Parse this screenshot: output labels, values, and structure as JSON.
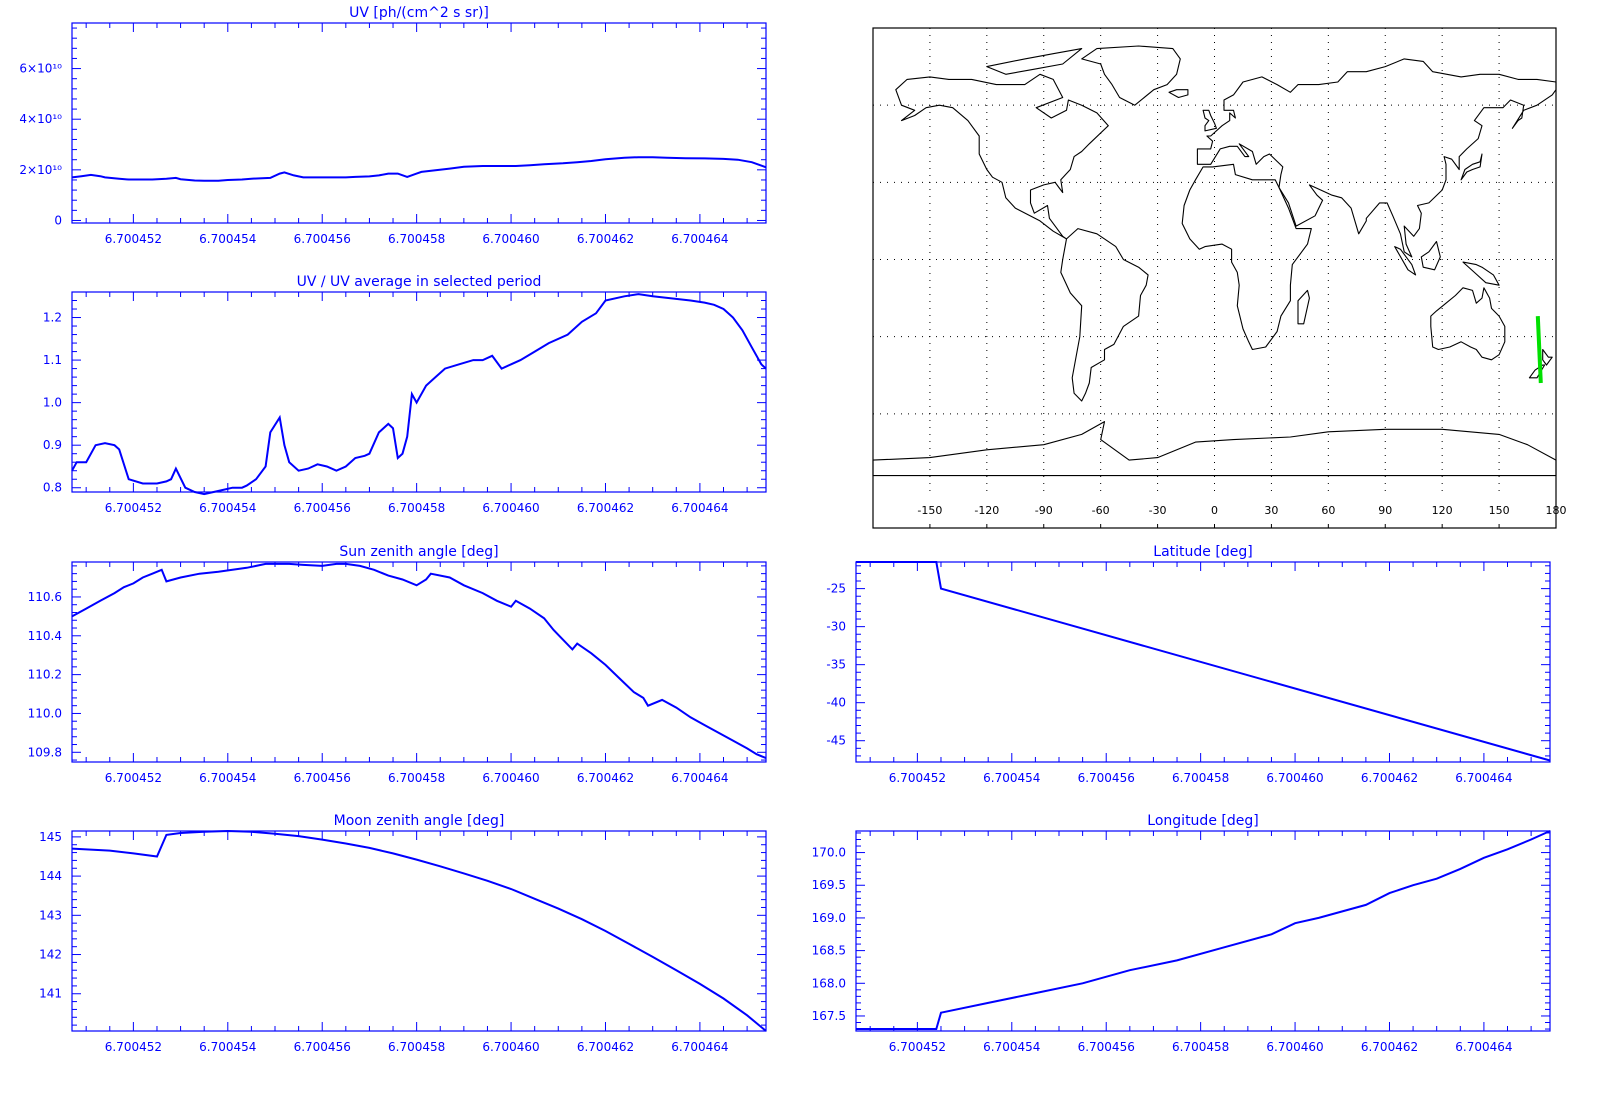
{
  "colors": {
    "axis": "#0000ff",
    "line": "#0000ff",
    "map": "#000000",
    "track": "#00e000",
    "grid": "#000000"
  },
  "x_tick_labels": [
    "6.700452",
    "6.700454",
    "6.700456",
    "6.700458",
    "6.700460",
    "6.700462",
    "6.700464"
  ],
  "chart_data": [
    {
      "id": "uv",
      "type": "line",
      "title": "UV [ph/(cm^2 s sr)]",
      "xlim": [
        6.7004507,
        6.7004654
      ],
      "ylim": [
        -1000000000.0,
        78000000000.0
      ],
      "x_ticks": [
        6.700452,
        6.700454,
        6.700456,
        6.700458,
        6.70046,
        6.700462,
        6.700464
      ],
      "y_ticks": [
        0,
        20000000000.0,
        40000000000.0,
        60000000000.0
      ],
      "y_tick_labels": [
        "0",
        "2×10¹⁰",
        "4×10¹⁰",
        "6×10¹⁰"
      ],
      "x": [
        6.7004507,
        6.7004509,
        6.7004511,
        6.7004513,
        6.7004514,
        6.7004517,
        6.7004519,
        6.7004522,
        6.7004524,
        6.7004527,
        6.7004529,
        6.700453,
        6.7004533,
        6.7004535,
        6.7004538,
        6.700454,
        6.7004543,
        6.7004545,
        6.7004549,
        6.7004551,
        6.7004552,
        6.7004554,
        6.7004556,
        6.7004559,
        6.7004562,
        6.7004565,
        6.7004567,
        6.700457,
        6.7004572,
        6.7004574,
        6.7004576,
        6.7004578,
        6.700458,
        6.7004581,
        6.7004584,
        6.7004587,
        6.700459,
        6.7004594,
        6.7004598,
        6.7004601,
        6.7004604,
        6.7004607,
        6.7004611,
        6.7004614,
        6.7004617,
        6.700462,
        6.7004624,
        6.7004627,
        6.700463,
        6.7004633,
        6.7004637,
        6.7004641,
        6.7004645,
        6.7004648,
        6.7004651,
        6.7004654
      ],
      "y": [
        17000000000.0,
        17500000000.0,
        18000000000.0,
        17500000000.0,
        17000000000.0,
        16500000000.0,
        16200000000.0,
        16200000000.0,
        16200000000.0,
        16500000000.0,
        16800000000.0,
        16300000000.0,
        15800000000.0,
        15700000000.0,
        15700000000.0,
        16000000000.0,
        16200000000.0,
        16500000000.0,
        16800000000.0,
        18500000000.0,
        19000000000.0,
        17800000000.0,
        17000000000.0,
        17000000000.0,
        17000000000.0,
        17000000000.0,
        17200000000.0,
        17400000000.0,
        17800000000.0,
        18500000000.0,
        18500000000.0,
        17200000000.0,
        18500000000.0,
        19200000000.0,
        19800000000.0,
        20500000000.0,
        21200000000.0,
        21500000000.0,
        21500000000.0,
        21500000000.0,
        21800000000.0,
        22200000000.0,
        22600000000.0,
        23000000000.0,
        23500000000.0,
        24200000000.0,
        24800000000.0,
        25000000000.0,
        25000000000.0,
        24800000000.0,
        24600000000.0,
        24500000000.0,
        24300000000.0,
        24000000000.0,
        23000000000.0,
        21000000000.0
      ]
    },
    {
      "id": "ratio",
      "type": "line",
      "title": "UV / UV average in selected period",
      "xlim": [
        6.7004507,
        6.7004654
      ],
      "ylim": [
        0.79,
        1.26
      ],
      "x_ticks": [
        6.700452,
        6.700454,
        6.700456,
        6.700458,
        6.70046,
        6.700462,
        6.700464
      ],
      "y_ticks": [
        0.8,
        0.9,
        1.0,
        1.1,
        1.2
      ],
      "y_tick_labels": [
        "0.8",
        "0.9",
        "1.0",
        "1.1",
        "1.2"
      ],
      "x": [
        6.7004507,
        6.7004508,
        6.700451,
        6.7004512,
        6.7004514,
        6.7004516,
        6.7004517,
        6.7004519,
        6.7004522,
        6.7004525,
        6.7004527,
        6.7004528,
        6.7004529,
        6.7004531,
        6.7004533,
        6.7004535,
        6.7004537,
        6.7004539,
        6.7004541,
        6.7004543,
        6.7004544,
        6.7004546,
        6.7004548,
        6.7004549,
        6.7004551,
        6.7004552,
        6.7004553,
        6.7004555,
        6.7004557,
        6.7004559,
        6.7004561,
        6.7004563,
        6.7004565,
        6.7004567,
        6.7004569,
        6.700457,
        6.7004572,
        6.7004574,
        6.7004575,
        6.7004576,
        6.7004577,
        6.7004578,
        6.7004579,
        6.700458,
        6.7004582,
        6.7004584,
        6.7004586,
        6.7004589,
        6.7004592,
        6.7004594,
        6.7004596,
        6.7004598,
        6.70046,
        6.7004602,
        6.7004605,
        6.7004608,
        6.7004612,
        6.7004615,
        6.7004618,
        6.700462,
        6.7004624,
        6.7004627,
        6.700463,
        6.7004634,
        6.7004638,
        6.7004641,
        6.7004643,
        6.7004645,
        6.7004647,
        6.7004649,
        6.7004651,
        6.7004653,
        6.7004654
      ],
      "y": [
        0.84,
        0.86,
        0.86,
        0.9,
        0.905,
        0.9,
        0.89,
        0.82,
        0.81,
        0.81,
        0.815,
        0.82,
        0.845,
        0.8,
        0.79,
        0.785,
        0.79,
        0.795,
        0.8,
        0.8,
        0.805,
        0.82,
        0.85,
        0.93,
        0.965,
        0.9,
        0.86,
        0.84,
        0.845,
        0.855,
        0.85,
        0.84,
        0.85,
        0.87,
        0.875,
        0.88,
        0.93,
        0.95,
        0.94,
        0.87,
        0.88,
        0.92,
        1.02,
        1.0,
        1.04,
        1.06,
        1.08,
        1.09,
        1.1,
        1.1,
        1.11,
        1.08,
        1.09,
        1.1,
        1.12,
        1.14,
        1.16,
        1.19,
        1.21,
        1.24,
        1.25,
        1.255,
        1.25,
        1.245,
        1.24,
        1.235,
        1.23,
        1.22,
        1.2,
        1.17,
        1.13,
        1.09,
        1.08
      ]
    },
    {
      "id": "sun",
      "type": "line",
      "title": "Sun zenith angle [deg]",
      "xlim": [
        6.7004507,
        6.7004654
      ],
      "ylim": [
        109.75,
        110.78
      ],
      "x_ticks": [
        6.700452,
        6.700454,
        6.700456,
        6.700458,
        6.70046,
        6.700462,
        6.700464
      ],
      "y_ticks": [
        109.8,
        110.0,
        110.2,
        110.4,
        110.6
      ],
      "y_tick_labels": [
        "109.8",
        "110.0",
        "110.2",
        "110.4",
        "110.6"
      ],
      "x": [
        6.7004507,
        6.700451,
        6.7004513,
        6.7004516,
        6.7004518,
        6.700452,
        6.7004522,
        6.7004524,
        6.7004526,
        6.7004527,
        6.700453,
        6.7004534,
        6.7004538,
        6.7004541,
        6.7004544,
        6.7004548,
        6.7004551,
        6.7004553,
        6.7004556,
        6.700456,
        6.7004563,
        6.7004565,
        6.7004568,
        6.7004571,
        6.7004574,
        6.7004577,
        6.700458,
        6.7004582,
        6.7004583,
        6.7004587,
        6.700459,
        6.7004594,
        6.7004597,
        6.70046,
        6.7004601,
        6.7004604,
        6.7004607,
        6.7004609,
        6.7004611,
        6.7004613,
        6.7004614,
        6.7004617,
        6.700462,
        6.7004623,
        6.7004626,
        6.7004628,
        6.7004629,
        6.7004632,
        6.7004635,
        6.7004638,
        6.7004641,
        6.7004644,
        6.7004647,
        6.700465,
        6.7004652,
        6.7004654
      ],
      "y": [
        110.5,
        110.54,
        110.58,
        110.62,
        110.65,
        110.67,
        110.7,
        110.72,
        110.74,
        110.68,
        110.7,
        110.72,
        110.73,
        110.74,
        110.75,
        110.77,
        110.77,
        110.77,
        110.765,
        110.76,
        110.77,
        110.77,
        110.76,
        110.74,
        110.71,
        110.69,
        110.66,
        110.69,
        110.72,
        110.7,
        110.66,
        110.62,
        110.58,
        110.55,
        110.58,
        110.54,
        110.49,
        110.43,
        110.38,
        110.33,
        110.36,
        110.31,
        110.25,
        110.18,
        110.11,
        110.08,
        110.04,
        110.07,
        110.03,
        109.98,
        109.94,
        109.9,
        109.86,
        109.82,
        109.79,
        109.77
      ]
    },
    {
      "id": "moon",
      "type": "line",
      "title": "Moon zenith angle [deg]",
      "xlim": [
        6.7004507,
        6.7004654
      ],
      "ylim": [
        140.05,
        145.15
      ],
      "x_ticks": [
        6.700452,
        6.700454,
        6.700456,
        6.700458,
        6.70046,
        6.700462,
        6.700464
      ],
      "y_ticks": [
        141,
        142,
        143,
        144,
        145
      ],
      "y_tick_labels": [
        "141",
        "142",
        "143",
        "144",
        "145"
      ],
      "x": [
        6.7004507,
        6.7004515,
        6.700452,
        6.7004525,
        6.7004527,
        6.700453,
        6.7004535,
        6.700454,
        6.7004545,
        6.700455,
        6.7004555,
        6.700456,
        6.7004565,
        6.700457,
        6.7004575,
        6.700458,
        6.7004585,
        6.700459,
        6.7004595,
        6.70046,
        6.7004605,
        6.700461,
        6.7004615,
        6.700462,
        6.7004625,
        6.700463,
        6.7004635,
        6.700464,
        6.7004645,
        6.700465,
        6.7004654
      ],
      "y": [
        144.7,
        144.65,
        144.58,
        144.5,
        145.05,
        145.1,
        145.13,
        145.15,
        145.13,
        145.08,
        145.02,
        144.93,
        144.83,
        144.72,
        144.58,
        144.42,
        144.25,
        144.07,
        143.88,
        143.67,
        143.42,
        143.17,
        142.9,
        142.6,
        142.27,
        141.94,
        141.6,
        141.25,
        140.88,
        140.45,
        140.05
      ]
    },
    {
      "id": "lat",
      "type": "line",
      "title": "Latitude [deg]",
      "xlim": [
        6.7004507,
        6.7004654
      ],
      "ylim": [
        -47.8,
        -21.5
      ],
      "x_ticks": [
        6.700452,
        6.700454,
        6.700456,
        6.700458,
        6.70046,
        6.700462,
        6.700464
      ],
      "y_ticks": [
        -45,
        -40,
        -35,
        -30,
        -25
      ],
      "y_tick_labels": [
        "-45",
        "-40",
        "-35",
        "-30",
        "-25"
      ],
      "x": [
        6.7004507,
        6.7004524,
        6.7004525,
        6.7004654
      ],
      "y": [
        -21.5,
        -21.5,
        -25.0,
        -47.6
      ]
    },
    {
      "id": "lon",
      "type": "line",
      "title": "Longitude [deg]",
      "xlim": [
        6.7004507,
        6.7004654
      ],
      "ylim": [
        167.27,
        170.33
      ],
      "x_ticks": [
        6.700452,
        6.700454,
        6.700456,
        6.700458,
        6.70046,
        6.700462,
        6.700464
      ],
      "y_ticks": [
        167.5,
        168.0,
        168.5,
        169.0,
        169.5,
        170.0
      ],
      "y_tick_labels": [
        "167.5",
        "168.0",
        "168.5",
        "169.0",
        "169.5",
        "170.0"
      ],
      "x": [
        6.7004507,
        6.7004524,
        6.7004525,
        6.7004535,
        6.7004545,
        6.7004555,
        6.7004565,
        6.7004575,
        6.7004585,
        6.7004595,
        6.70046,
        6.7004605,
        6.7004615,
        6.700462,
        6.7004625,
        6.700463,
        6.7004635,
        6.700464,
        6.7004645,
        6.700465,
        6.7004654
      ],
      "y": [
        167.3,
        167.3,
        167.55,
        167.7,
        167.85,
        168.0,
        168.2,
        168.35,
        168.55,
        168.75,
        168.92,
        169.0,
        169.2,
        169.38,
        169.5,
        169.6,
        169.75,
        169.92,
        170.05,
        170.2,
        170.33
      ]
    },
    {
      "id": "map",
      "type": "map",
      "xlim": [
        -180,
        180
      ],
      "ylim": [
        -90,
        90
      ],
      "x_ticks": [
        -150,
        -120,
        -90,
        -60,
        -30,
        0,
        30,
        60,
        90,
        120,
        150,
        180
      ],
      "x_tick_labels": [
        "-150",
        "-120",
        "-90",
        "-60",
        "-30",
        "0",
        "30",
        "60",
        "90",
        "120",
        "150",
        "180"
      ],
      "track": {
        "lon": [
          170.4,
          172.0
        ],
        "lat": [
          -22,
          -48
        ]
      }
    }
  ]
}
